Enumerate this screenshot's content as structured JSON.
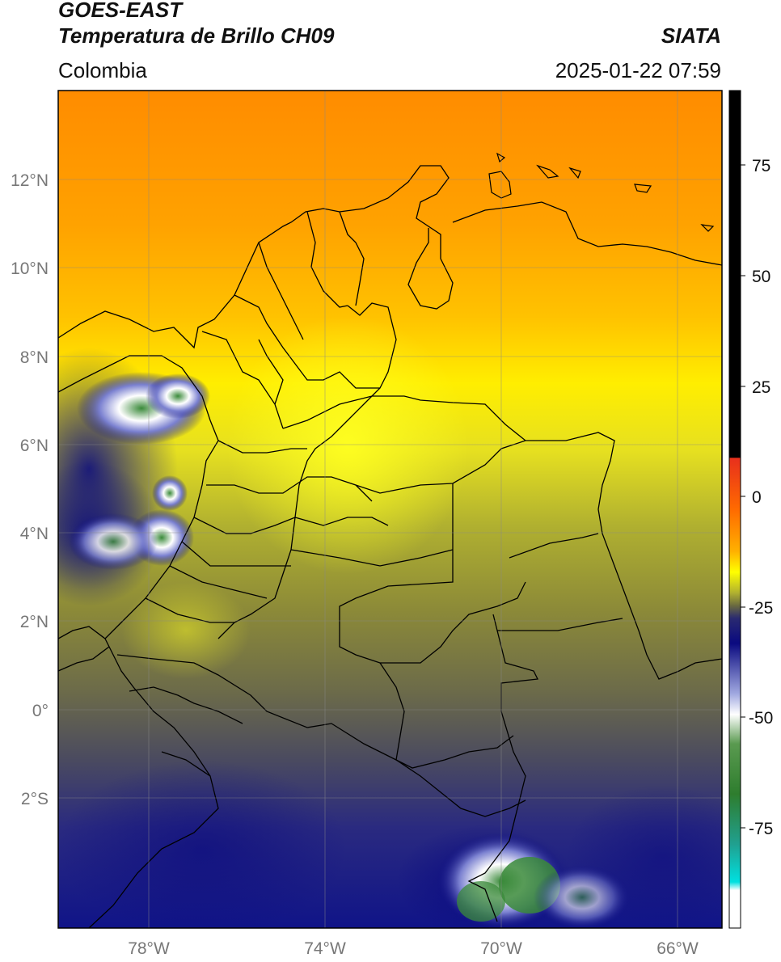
{
  "header": {
    "title_line1": "GOES-EAST",
    "title_line2": "Temperatura de Brillo CH09",
    "brand": "SIATA",
    "region": "Colombia",
    "datetime": "2025-01-22 07:59"
  },
  "map": {
    "lat_labels": [
      "12°N",
      "10°N",
      "8°N",
      "6°N",
      "4°N",
      "2°N",
      "0°",
      "2°S"
    ],
    "lon_labels": [
      "78°W",
      "74°W",
      "70°W",
      "66°W"
    ]
  },
  "colorbar": {
    "ticks": [
      "75",
      "50",
      "25",
      "0",
      "-25",
      "-50",
      "-75"
    ],
    "colors": {
      "black": "#000000",
      "red": "#e8301c",
      "orange": "#ff8c00",
      "yellow": "#ffff00",
      "olive": "#7a7a2a",
      "navy": "#0a0a80",
      "white": "#ffffff",
      "green": "#2e7d2e",
      "cyan": "#00e0e0"
    }
  }
}
